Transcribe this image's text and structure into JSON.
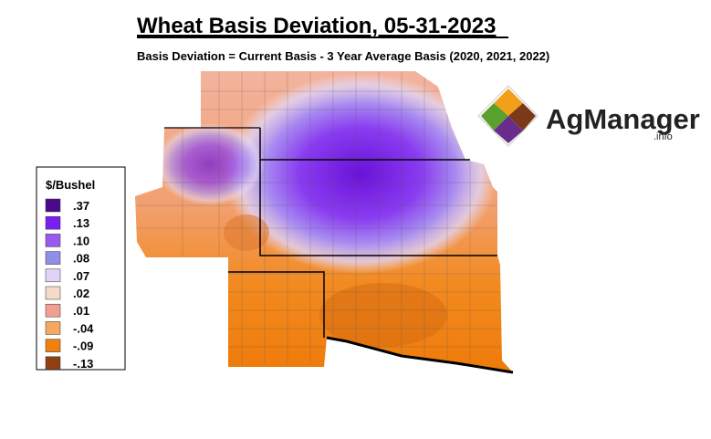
{
  "header": {
    "title": "Wheat Basis Deviation, 05-31-2023",
    "subtitle": "Basis Deviation = Current Basis - 3 Year Average Basis (2020, 2021, 2022)"
  },
  "legend": {
    "title": "$/Bushel",
    "items": [
      {
        "label": ".37",
        "color": "#4a0a8a"
      },
      {
        "label": ".13",
        "color": "#7a1ff0"
      },
      {
        "label": ".10",
        "color": "#9a5af0"
      },
      {
        "label": ".08",
        "color": "#8f8fe8"
      },
      {
        "label": ".07",
        "color": "#e2d2f6"
      },
      {
        "label": ".02",
        "color": "#f6dac9"
      },
      {
        "label": ".01",
        "color": "#f0a090"
      },
      {
        "label": "-.04",
        "color": "#f5a860"
      },
      {
        "label": "-.09",
        "color": "#f08010"
      },
      {
        "label": "-.13",
        "color": "#904010"
      }
    ]
  },
  "logo": {
    "name": "AgManager",
    "suffix": ".info"
  }
}
